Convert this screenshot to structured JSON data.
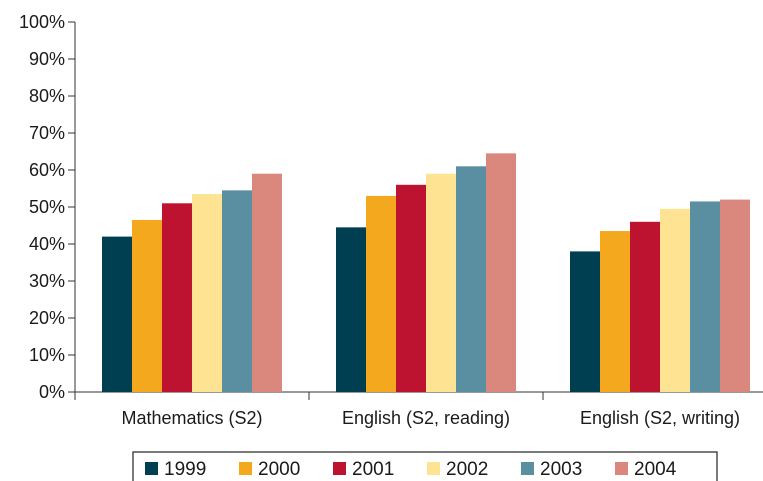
{
  "chart_data": {
    "type": "bar",
    "title": "",
    "xlabel": "",
    "ylabel": "",
    "ylim": [
      0,
      100
    ],
    "yticks": [
      "0%",
      "10%",
      "20%",
      "30%",
      "40%",
      "50%",
      "60%",
      "70%",
      "80%",
      "90%",
      "100%"
    ],
    "categories": [
      "Mathematics (S2)",
      "English (S2, reading)",
      "English (S2, writing)"
    ],
    "series": [
      {
        "name": "1999",
        "color": "#003f52",
        "values": [
          42,
          44.5,
          38
        ]
      },
      {
        "name": "2000",
        "color": "#f4a81d",
        "values": [
          46.5,
          53,
          43.5
        ]
      },
      {
        "name": "2001",
        "color": "#bd1330",
        "values": [
          51,
          56,
          46
        ]
      },
      {
        "name": "2002",
        "color": "#fde392",
        "values": [
          53.5,
          59,
          49.5
        ]
      },
      {
        "name": "2003",
        "color": "#5a8ea1",
        "values": [
          54.5,
          61,
          51.5
        ]
      },
      {
        "name": "2004",
        "color": "#da877e",
        "values": [
          59,
          64.5,
          52
        ]
      }
    ],
    "grid": false,
    "legend_position": "bottom"
  }
}
